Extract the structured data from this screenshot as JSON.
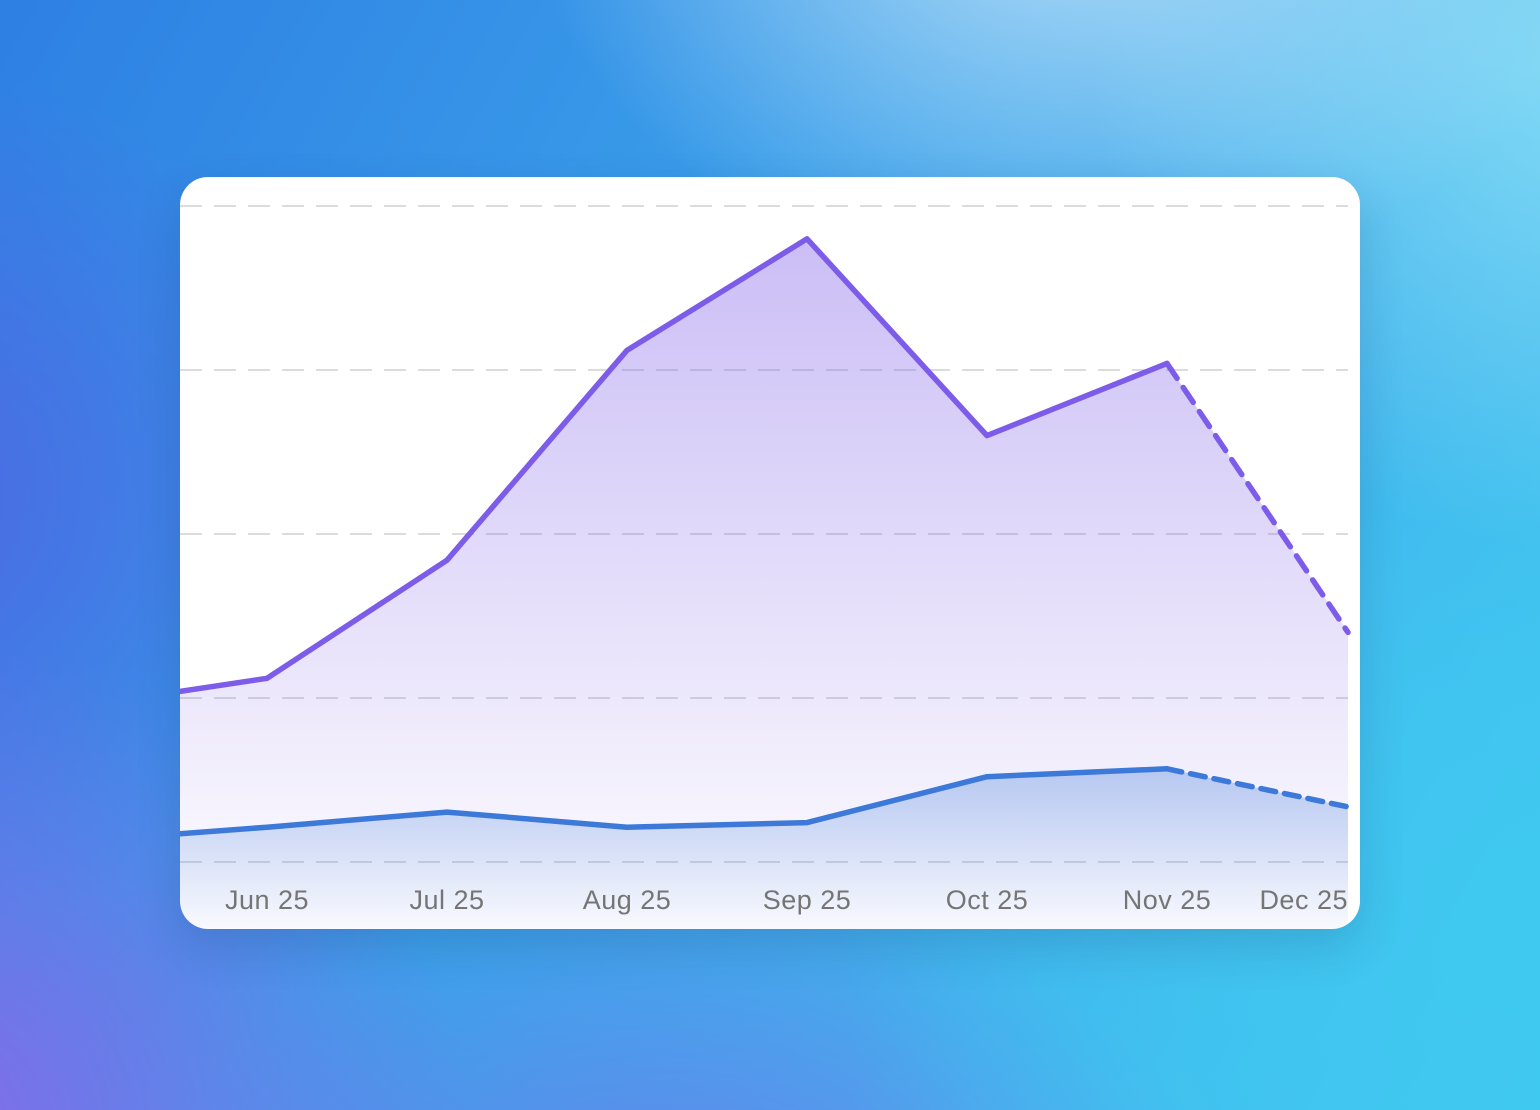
{
  "page": {
    "background_palette": {
      "top_left_blue": "#2e80e3",
      "top_center_light": "#bae0f8",
      "top_right_cyan": "#8cdef6",
      "right_cyan": "#3ec9f0",
      "bottom_left_violet": "#8b68e9",
      "left_blue_violet": "#5562e4"
    },
    "card_background": "#ffffff"
  },
  "chart_data": {
    "type": "area",
    "title": "",
    "xlabel": "",
    "ylabel": "",
    "categories": [
      "Jun 25",
      "Jul 25",
      "Aug 25",
      "Sep 25",
      "Oct 25",
      "Nov 25",
      "Dec 25"
    ],
    "x_tick_positions": [
      0.0745,
      0.2286,
      0.3827,
      0.5368,
      0.6909,
      0.845,
      1.0
    ],
    "series": [
      {
        "id": "purple-series",
        "stroke": "#7c5ce8",
        "fill_top": "rgba(124,92,232,0.40)",
        "fill_bottom": "rgba(124,92,232,0)",
        "x_positions": [
          0,
          0.0745,
          0.2286,
          0.3827,
          0.5368,
          0.6909,
          0.845,
          1.0
        ],
        "values": [
          26,
          28,
          46,
          78,
          95,
          65,
          76,
          35
        ],
        "dashed_from_index": 6,
        "dash_pattern": "18 11"
      },
      {
        "id": "blue-series",
        "stroke": "#3d79d9",
        "fill_top": "rgba(61,121,217,0.33)",
        "fill_bottom": "rgba(61,121,217,0)",
        "x_positions": [
          0,
          0.0745,
          0.2286,
          0.3827,
          0.5368,
          0.6909,
          0.845,
          1.0
        ],
        "values": [
          4.3,
          5.3,
          7.6,
          5.3,
          6,
          13,
          14.2,
          8.4
        ],
        "dashed_from_index": 6,
        "dash_pattern": "15 9"
      }
    ],
    "ylim": [
      0,
      105
    ],
    "gridline_values": [
      0,
      25,
      50,
      75,
      100
    ],
    "grid": "horizontal dashed, no y-axis labels",
    "gridline_color": "#dcdcdc",
    "axis_label_color": "#757575",
    "legend": "none"
  }
}
